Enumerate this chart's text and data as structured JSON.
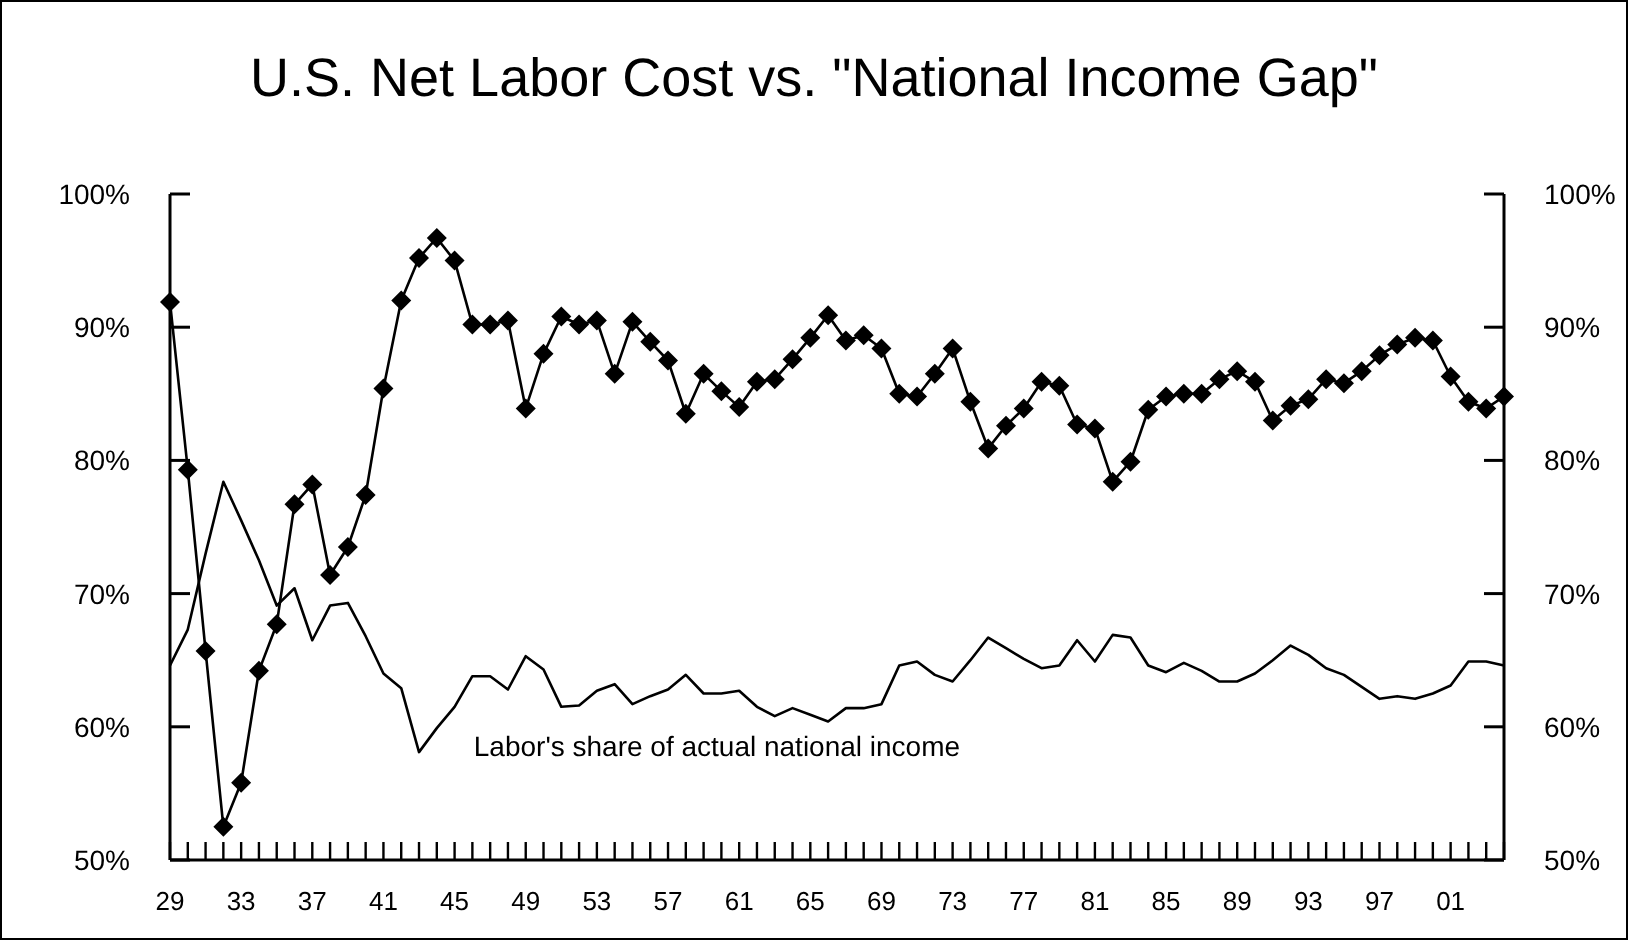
{
  "chart_data": {
    "type": "line",
    "title": "U.S. Net Labor Cost vs. \"National Income Gap\"",
    "x": [
      1929,
      1930,
      1931,
      1932,
      1933,
      1934,
      1935,
      1936,
      1937,
      1938,
      1939,
      1940,
      1941,
      1942,
      1943,
      1944,
      1945,
      1946,
      1947,
      1948,
      1949,
      1950,
      1951,
      1952,
      1953,
      1954,
      1955,
      1956,
      1957,
      1958,
      1959,
      1960,
      1961,
      1962,
      1963,
      1964,
      1965,
      1966,
      1967,
      1968,
      1969,
      1970,
      1971,
      1972,
      1973,
      1974,
      1975,
      1976,
      1977,
      1978,
      1979,
      1980,
      1981,
      1982,
      1983,
      1984,
      1985,
      1986,
      1987,
      1988,
      1989,
      1990,
      1991,
      1992,
      1993,
      1994,
      1995,
      1996,
      1997,
      1998,
      1999,
      2000,
      2001,
      2002,
      2003,
      2004
    ],
    "series": [
      {
        "color": "#000000",
        "marker": "diamond",
        "values": [
          91.9,
          79.3,
          65.7,
          52.5,
          55.8,
          64.2,
          67.7,
          76.7,
          78.2,
          71.4,
          73.5,
          77.4,
          85.4,
          92.0,
          95.2,
          96.7,
          95.0,
          90.2,
          90.2,
          90.5,
          83.9,
          88.0,
          90.8,
          90.2,
          90.5,
          86.5,
          90.4,
          88.9,
          87.5,
          83.5,
          86.5,
          85.2,
          84.0,
          85.9,
          86.1,
          87.6,
          89.2,
          90.9,
          89.0,
          89.4,
          88.4,
          85.0,
          84.8,
          86.5,
          88.4,
          84.4,
          80.9,
          82.6,
          83.9,
          85.9,
          85.6,
          82.7,
          82.4,
          78.4,
          79.9,
          83.8,
          84.8,
          85.0,
          85.0,
          86.1,
          86.7,
          85.9,
          83.0,
          84.1,
          84.6,
          86.1,
          85.8,
          86.7,
          87.9,
          88.7,
          89.2,
          89.0,
          86.3,
          84.4,
          83.9,
          84.8
        ]
      },
      {
        "name": "Labor's share of actual national income",
        "color": "#000000",
        "marker": "none",
        "values": [
          64.6,
          67.3,
          73.0,
          78.4,
          75.5,
          72.5,
          69.1,
          70.4,
          66.5,
          69.1,
          69.3,
          66.8,
          64.0,
          62.9,
          58.1,
          59.9,
          61.5,
          63.8,
          63.8,
          62.8,
          65.3,
          64.3,
          61.5,
          61.6,
          62.7,
          63.2,
          61.7,
          62.3,
          62.8,
          63.9,
          62.5,
          62.5,
          62.7,
          61.5,
          60.8,
          61.4,
          60.9,
          60.4,
          61.4,
          61.4,
          61.7,
          64.6,
          64.9,
          63.9,
          63.4,
          65.0,
          66.7,
          65.9,
          65.1,
          64.4,
          64.6,
          66.5,
          64.9,
          66.9,
          66.7,
          64.6,
          64.1,
          64.8,
          64.2,
          63.4,
          63.4,
          64.0,
          65.0,
          66.1,
          65.4,
          64.4,
          63.9,
          63.0,
          62.1,
          62.3,
          62.1,
          62.5,
          63.1,
          64.9,
          64.9,
          64.6
        ]
      }
    ],
    "xlim": [
      1929,
      2004
    ],
    "xticks": [
      {
        "value": 1929,
        "label": "29"
      },
      {
        "value": 1930,
        "label": null
      },
      {
        "value": 1931,
        "label": null
      },
      {
        "value": 1932,
        "label": null
      },
      {
        "value": 1933,
        "label": "33"
      },
      {
        "value": 1934,
        "label": null
      },
      {
        "value": 1935,
        "label": null
      },
      {
        "value": 1936,
        "label": null
      },
      {
        "value": 1937,
        "label": "37"
      },
      {
        "value": 1938,
        "label": null
      },
      {
        "value": 1939,
        "label": null
      },
      {
        "value": 1940,
        "label": null
      },
      {
        "value": 1941,
        "label": "41"
      },
      {
        "value": 1942,
        "label": null
      },
      {
        "value": 1943,
        "label": null
      },
      {
        "value": 1944,
        "label": null
      },
      {
        "value": 1945,
        "label": "45"
      },
      {
        "value": 1946,
        "label": null
      },
      {
        "value": 1947,
        "label": null
      },
      {
        "value": 1948,
        "label": null
      },
      {
        "value": 1949,
        "label": "49"
      },
      {
        "value": 1950,
        "label": null
      },
      {
        "value": 1951,
        "label": null
      },
      {
        "value": 1952,
        "label": null
      },
      {
        "value": 1953,
        "label": "53"
      },
      {
        "value": 1954,
        "label": null
      },
      {
        "value": 1955,
        "label": null
      },
      {
        "value": 1956,
        "label": null
      },
      {
        "value": 1957,
        "label": "57"
      },
      {
        "value": 1958,
        "label": null
      },
      {
        "value": 1959,
        "label": null
      },
      {
        "value": 1960,
        "label": null
      },
      {
        "value": 1961,
        "label": "61"
      },
      {
        "value": 1962,
        "label": null
      },
      {
        "value": 1963,
        "label": null
      },
      {
        "value": 1964,
        "label": null
      },
      {
        "value": 1965,
        "label": "65"
      },
      {
        "value": 1966,
        "label": null
      },
      {
        "value": 1967,
        "label": null
      },
      {
        "value": 1968,
        "label": null
      },
      {
        "value": 1969,
        "label": "69"
      },
      {
        "value": 1970,
        "label": null
      },
      {
        "value": 1971,
        "label": null
      },
      {
        "value": 1972,
        "label": null
      },
      {
        "value": 1973,
        "label": "73"
      },
      {
        "value": 1974,
        "label": null
      },
      {
        "value": 1975,
        "label": null
      },
      {
        "value": 1976,
        "label": null
      },
      {
        "value": 1977,
        "label": "77"
      },
      {
        "value": 1978,
        "label": null
      },
      {
        "value": 1979,
        "label": null
      },
      {
        "value": 1980,
        "label": null
      },
      {
        "value": 1981,
        "label": "81"
      },
      {
        "value": 1982,
        "label": null
      },
      {
        "value": 1983,
        "label": null
      },
      {
        "value": 1984,
        "label": null
      },
      {
        "value": 1985,
        "label": "85"
      },
      {
        "value": 1986,
        "label": null
      },
      {
        "value": 1987,
        "label": null
      },
      {
        "value": 1988,
        "label": null
      },
      {
        "value": 1989,
        "label": "89"
      },
      {
        "value": 1990,
        "label": null
      },
      {
        "value": 1991,
        "label": null
      },
      {
        "value": 1992,
        "label": null
      },
      {
        "value": 1993,
        "label": "93"
      },
      {
        "value": 1994,
        "label": null
      },
      {
        "value": 1995,
        "label": null
      },
      {
        "value": 1996,
        "label": null
      },
      {
        "value": 1997,
        "label": "97"
      },
      {
        "value": 1998,
        "label": null
      },
      {
        "value": 1999,
        "label": null
      },
      {
        "value": 2000,
        "label": null
      },
      {
        "value": 2001,
        "label": "01"
      },
      {
        "value": 2002,
        "label": null
      },
      {
        "value": 2003,
        "label": null
      },
      {
        "value": 2004,
        "label": null
      }
    ],
    "ylim": [
      50,
      100
    ],
    "yticks": [
      {
        "value": 50,
        "label": "50%"
      },
      {
        "value": 60,
        "label": "60%"
      },
      {
        "value": 70,
        "label": "70%"
      },
      {
        "value": 80,
        "label": "80%"
      },
      {
        "value": 90,
        "label": "90%"
      },
      {
        "value": 100,
        "label": "100%"
      }
    ],
    "y2lim": [
      50,
      100
    ],
    "y2ticks": [
      {
        "value": 50,
        "label": "50%"
      },
      {
        "value": 60,
        "label": "60%"
      },
      {
        "value": 70,
        "label": "70%"
      },
      {
        "value": 80,
        "label": "80%"
      },
      {
        "value": 90,
        "label": "90%"
      },
      {
        "value": 100,
        "label": "100%"
      }
    ],
    "grid": false,
    "legend": false,
    "line_style": "solid"
  }
}
